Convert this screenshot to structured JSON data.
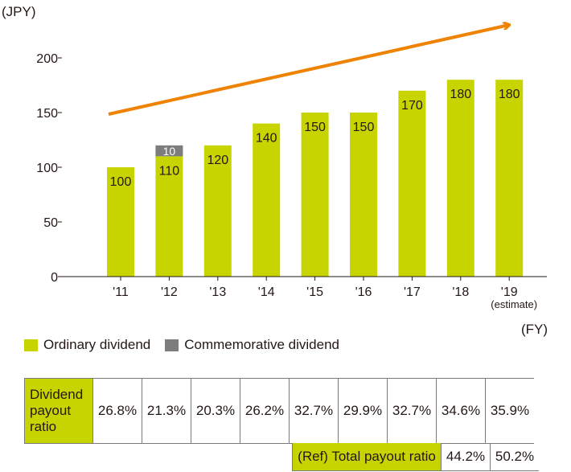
{
  "chart_data": {
    "type": "bar",
    "stacked": true,
    "unit_label": "(JPY)",
    "x_unit_label": "(FY)",
    "categories": [
      "'11",
      "'12",
      "'13",
      "'14",
      "'15",
      "'16",
      "'17",
      "'18",
      "'19"
    ],
    "category_notes": [
      "",
      "",
      "",
      "",
      "",
      "",
      "",
      "",
      "(estimate)"
    ],
    "ylim": [
      0,
      200
    ],
    "yticks": [
      0,
      50,
      100,
      150,
      200
    ],
    "series": [
      {
        "name": "Ordinary dividend",
        "color": "#c8d400",
        "values": [
          100,
          110,
          120,
          140,
          150,
          150,
          170,
          180,
          180
        ]
      },
      {
        "name": "Commemorative dividend",
        "color": "#7d7d7d",
        "values": [
          0,
          10,
          0,
          0,
          0,
          0,
          0,
          0,
          0
        ]
      }
    ],
    "trend_arrow": {
      "color": "#ef8200"
    },
    "legend_position": "bottom-left",
    "grid": false
  },
  "payout_table": {
    "label": "Dividend payout ratio",
    "values": [
      "26.8%",
      "21.3%",
      "20.3%",
      "26.2%",
      "32.7%",
      "29.9%",
      "32.7%",
      "34.6%",
      "35.9%"
    ]
  },
  "ref_table": {
    "label": "(Ref) Total payout ratio",
    "values": [
      "44.2%",
      "50.2%"
    ]
  }
}
